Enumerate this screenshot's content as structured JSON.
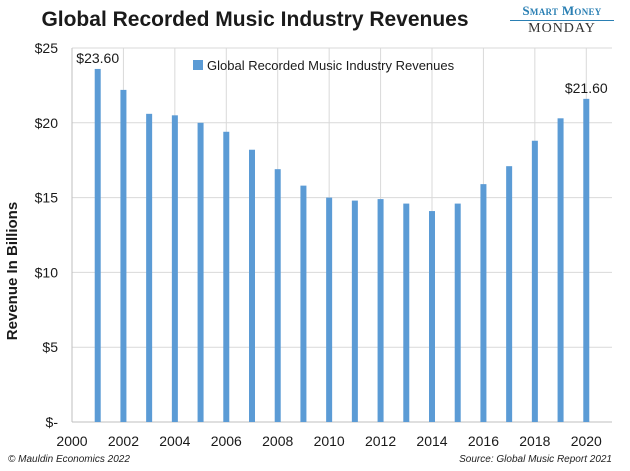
{
  "header": {
    "title": "Global Recorded Music Industry Revenues",
    "brand_top": "Smart Money",
    "brand_bottom": "MONDAY"
  },
  "footer": {
    "copyright": "© Mauldin Economics 2022",
    "source": "Source: Global Music Report 2021"
  },
  "colors": {
    "bar": "#5b9bd5",
    "grid": "#d9d9d9",
    "axis": "#bfbfbf",
    "text": "#1a1a1a"
  },
  "chart_data": {
    "type": "bar",
    "title": "Global Recorded Music Industry Revenues",
    "ylabel": "Revenue In Billions",
    "xlabel": "",
    "legend": {
      "label": "Global Recorded Music Industry Revenues",
      "placement": "top-center"
    },
    "grid": true,
    "x_ticks": [
      "2000",
      "2002",
      "2004",
      "2006",
      "2008",
      "2010",
      "2012",
      "2014",
      "2016",
      "2018",
      "2020"
    ],
    "xlim": [
      2000,
      2021
    ],
    "y_ticks": [
      "$-",
      "$5",
      "$10",
      "$15",
      "$20",
      "$25"
    ],
    "ylim": [
      0,
      25
    ],
    "series": [
      {
        "name": "Global Recorded Music Industry Revenues",
        "x": [
          2001,
          2002,
          2003,
          2004,
          2005,
          2006,
          2007,
          2008,
          2009,
          2010,
          2011,
          2012,
          2013,
          2014,
          2015,
          2016,
          2017,
          2018,
          2019,
          2020
        ],
        "values": [
          23.6,
          22.2,
          20.6,
          20.5,
          20.0,
          19.4,
          18.2,
          16.9,
          15.8,
          15.0,
          14.8,
          14.9,
          14.6,
          14.1,
          14.6,
          15.9,
          17.1,
          18.8,
          20.3,
          21.6
        ]
      }
    ],
    "annotations": [
      {
        "x": 2001,
        "value": 23.6,
        "text": "$23.60"
      },
      {
        "x": 2020,
        "value": 21.6,
        "text": "$21.60"
      }
    ]
  }
}
